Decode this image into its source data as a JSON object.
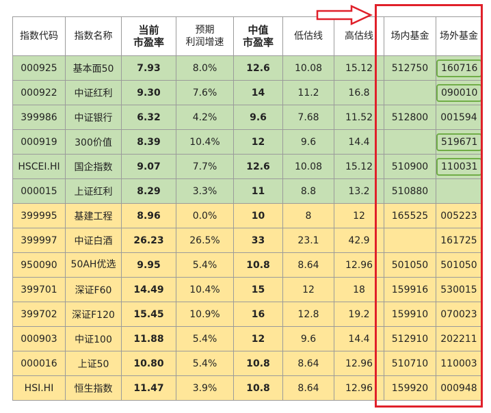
{
  "table": {
    "headers": [
      {
        "line1": "指数代码",
        "line2": ""
      },
      {
        "line1": "指数名称",
        "line2": ""
      },
      {
        "line1": "当前",
        "line2": "市盈率"
      },
      {
        "line1": "预期",
        "line2": "利润增速"
      },
      {
        "line1": "中值",
        "line2": "市盈率"
      },
      {
        "line1": "低估线",
        "line2": ""
      },
      {
        "line1": "高估线",
        "line2": ""
      },
      {
        "line1": "场内基金",
        "line2": ""
      },
      {
        "line1": "场外基金",
        "line2": ""
      }
    ],
    "rows": [
      {
        "code": "000925",
        "name": "基本面50",
        "pe": "7.93",
        "growth": "8.0%",
        "mid_pe": "12.6",
        "low": "10.08",
        "high": "15.12",
        "onsite": "512750",
        "offsite": "160716",
        "offsite_boxed": true,
        "group": "green"
      },
      {
        "code": "000922",
        "name": "中证红利",
        "pe": "9.30",
        "growth": "7.6%",
        "mid_pe": "14",
        "low": "11.2",
        "high": "16.8",
        "onsite": "",
        "offsite": "090010",
        "offsite_boxed": true,
        "group": "green"
      },
      {
        "code": "399986",
        "name": "中证银行",
        "pe": "6.32",
        "growth": "4.2%",
        "mid_pe": "9.6",
        "low": "7.68",
        "high": "11.52",
        "onsite": "512800",
        "offsite": "001594",
        "offsite_boxed": false,
        "group": "green"
      },
      {
        "code": "000919",
        "name": "300价值",
        "pe": "8.39",
        "growth": "10.4%",
        "mid_pe": "12",
        "low": "9.6",
        "high": "14.4",
        "onsite": "",
        "offsite": "519671",
        "offsite_boxed": true,
        "group": "green"
      },
      {
        "code": "HSCEI.HI",
        "name": "国企指数",
        "pe": "9.07",
        "growth": "7.7%",
        "mid_pe": "12.6",
        "low": "10.08",
        "high": "15.12",
        "onsite": "510900",
        "offsite": "110031",
        "offsite_boxed": true,
        "group": "green"
      },
      {
        "code": "000015",
        "name": "上证红利",
        "pe": "8.29",
        "growth": "3.3%",
        "mid_pe": "11",
        "low": "8.8",
        "high": "13.2",
        "onsite": "510880",
        "offsite": "",
        "offsite_boxed": false,
        "group": "green"
      },
      {
        "code": "399995",
        "name": "基建工程",
        "pe": "8.96",
        "growth": "0.0%",
        "mid_pe": "10",
        "low": "8",
        "high": "12",
        "onsite": "165525",
        "offsite": "005223",
        "offsite_boxed": false,
        "group": "yellow"
      },
      {
        "code": "399997",
        "name": "中证白酒",
        "pe": "26.23",
        "growth": "26.5%",
        "mid_pe": "33",
        "low": "23.1",
        "high": "42.9",
        "onsite": "",
        "offsite": "161725",
        "offsite_boxed": false,
        "group": "yellow"
      },
      {
        "code": "950090",
        "name": "50AH优选",
        "pe": "9.95",
        "growth": "5.4%",
        "mid_pe": "10.8",
        "low": "8.64",
        "high": "12.96",
        "onsite": "501050",
        "offsite": "501050",
        "offsite_boxed": false,
        "group": "yellow"
      },
      {
        "code": "399701",
        "name": "深证F60",
        "pe": "14.49",
        "growth": "10.4%",
        "mid_pe": "15",
        "low": "12",
        "high": "18",
        "onsite": "159916",
        "offsite": "530015",
        "offsite_boxed": false,
        "group": "yellow"
      },
      {
        "code": "399702",
        "name": "深证F120",
        "pe": "15.45",
        "growth": "10.9%",
        "mid_pe": "16",
        "low": "12.8",
        "high": "19.2",
        "onsite": "159910",
        "offsite": "070023",
        "offsite_boxed": false,
        "group": "yellow"
      },
      {
        "code": "000903",
        "name": "中证100",
        "pe": "11.88",
        "growth": "5.4%",
        "mid_pe": "12",
        "low": "9.6",
        "high": "14.4",
        "onsite": "512910",
        "offsite": "202211",
        "offsite_boxed": false,
        "group": "yellow"
      },
      {
        "code": "000016",
        "name": "上证50",
        "pe": "10.80",
        "growth": "5.4%",
        "mid_pe": "10.8",
        "low": "8.64",
        "high": "12.96",
        "onsite": "510710",
        "offsite": "110003",
        "offsite_boxed": false,
        "group": "yellow"
      },
      {
        "code": "HSI.HI",
        "name": "恒生指数",
        "pe": "11.47",
        "growth": "3.9%",
        "mid_pe": "10.8",
        "low": "8.64",
        "high": "12.96",
        "onsite": "159920",
        "offsite": "000948",
        "offsite_boxed": false,
        "group": "yellow"
      }
    ]
  },
  "colors": {
    "green_row": "#c6e0b4",
    "yellow_row": "#ffe699",
    "highlight_frame": "#e0202a",
    "fund_box": "#70ad47"
  },
  "annotations": {
    "arrow_icon": "right-arrow-outline-icon",
    "frame": "highlight-box-fund-columns"
  }
}
